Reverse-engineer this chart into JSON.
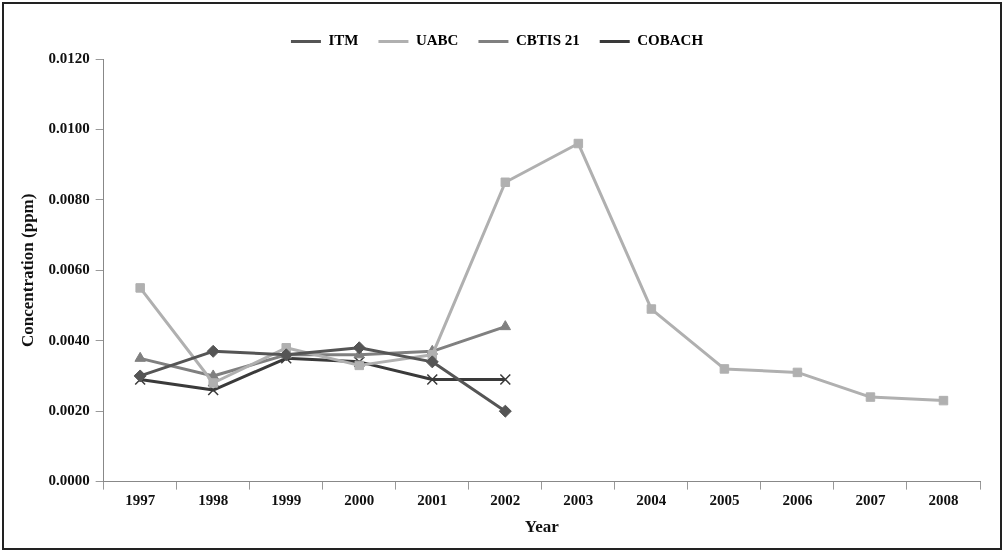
{
  "chart_data": {
    "type": "line",
    "xlabel": "Year",
    "ylabel": "Concentration (ppm)",
    "categories": [
      "1997",
      "1998",
      "1999",
      "2000",
      "2001",
      "2002",
      "2003",
      "2004",
      "2005",
      "2006",
      "2007",
      "2008"
    ],
    "series": [
      {
        "name": "ITM",
        "color": "#555555",
        "marker": "diamond",
        "values": [
          0.003,
          0.0037,
          0.0036,
          0.0038,
          0.0034,
          0.002,
          null,
          null,
          null,
          null,
          null,
          null
        ]
      },
      {
        "name": "UABC",
        "color": "#b0b0b0",
        "marker": "square",
        "values": [
          0.0055,
          0.0028,
          0.0038,
          0.0033,
          0.0036,
          0.0085,
          0.0096,
          0.0049,
          0.0032,
          0.0031,
          0.0024,
          0.0023
        ]
      },
      {
        "name": "CBTIS 21",
        "color": "#808080",
        "marker": "triangle",
        "values": [
          0.0035,
          0.003,
          0.0036,
          0.0036,
          0.0037,
          0.0044,
          null,
          null,
          null,
          null,
          null,
          null
        ]
      },
      {
        "name": "COBACH",
        "color": "#3a3a3a",
        "marker": "cross",
        "values": [
          0.0029,
          0.0026,
          0.0035,
          0.0034,
          0.0029,
          0.0029,
          null,
          null,
          null,
          null,
          null,
          null
        ]
      }
    ],
    "ylim": [
      0,
      0.012
    ],
    "yticks": [
      {
        "value": 0,
        "label": "0.0000"
      },
      {
        "value": 0.002,
        "label": "0.0020"
      },
      {
        "value": 0.004,
        "label": "0.0040"
      },
      {
        "value": 0.006,
        "label": "0.0060"
      },
      {
        "value": 0.008,
        "label": "0.0080"
      },
      {
        "value": 0.01,
        "label": "0.0100"
      },
      {
        "value": 0.012,
        "label": "0.0120"
      }
    ],
    "grid": false,
    "legend": "top"
  }
}
